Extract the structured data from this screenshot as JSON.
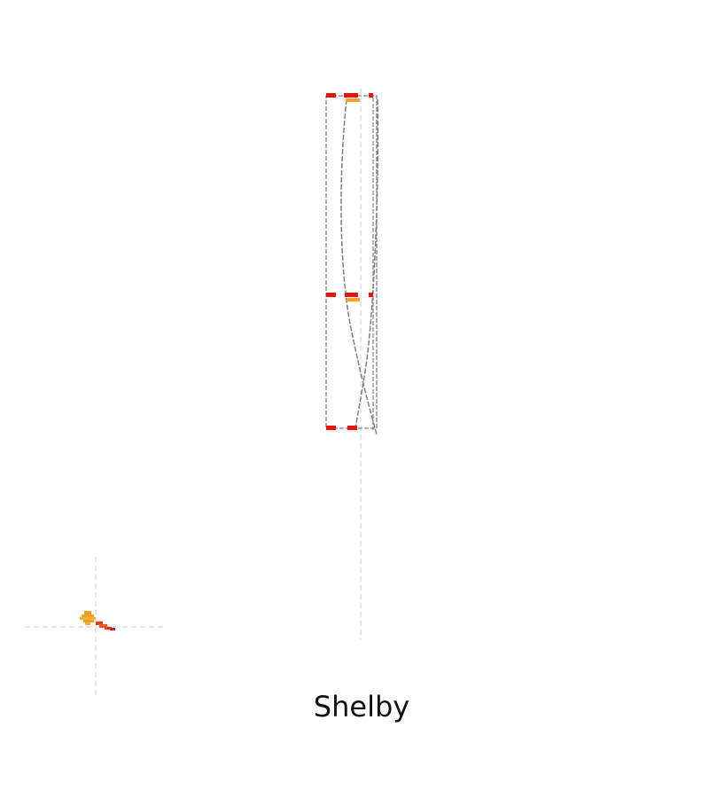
{
  "caption": "Shelby",
  "colors": {
    "background": "#ffffff",
    "guide": "#d8d8d8",
    "outline": "#7f7f7f",
    "marker_red": "#e8140c",
    "marker_orange": "#f5a030",
    "mini_orange": "#f0a020",
    "mini_red": "#e83c18",
    "text": "#111111"
  }
}
